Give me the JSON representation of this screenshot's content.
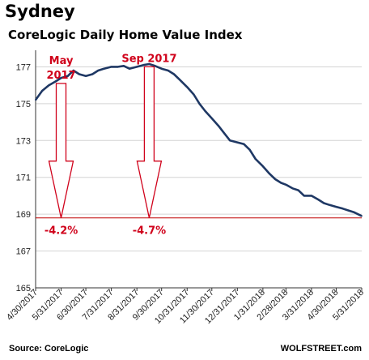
{
  "header": {
    "title": "Sydney",
    "subtitle": "CoreLogic Daily Home Value Index"
  },
  "footer": {
    "source": "Source: CoreLogic",
    "brand": "WOLFSTREET.com"
  },
  "colors": {
    "line": "#1f3864",
    "annotation": "#d0021b",
    "grid": "#d4d4d4",
    "reference_line": "#c00000"
  },
  "chart_data": {
    "type": "line",
    "title": "CoreLogic Daily Home Value Index",
    "xlabel": "",
    "ylabel": "",
    "ylim": [
      165,
      177.9
    ],
    "yticks": [
      165,
      167,
      169,
      171,
      173,
      175,
      177
    ],
    "grid": true,
    "xticks": [
      "4/30/2017",
      "5/31/2017",
      "6/30/2017",
      "7/31/2017",
      "8/31/2017",
      "9/30/2017",
      "10/31/2017",
      "11/30/2017",
      "12/31/2017",
      "1/31/2018",
      "2/28/2018",
      "3/31/2018",
      "4/30/2018",
      "5/31/2018"
    ],
    "series": [
      {
        "name": "",
        "points": [
          [
            "4/30/2017",
            175.2
          ],
          [
            "5/8/2017",
            175.7
          ],
          [
            "5/16/2017",
            176.0
          ],
          [
            "5/24/2017",
            176.2
          ],
          [
            "5/31/2017",
            176.4
          ],
          [
            "6/8/2017",
            176.5
          ],
          [
            "6/15/2017",
            176.8
          ],
          [
            "6/22/2017",
            176.6
          ],
          [
            "6/30/2017",
            176.5
          ],
          [
            "7/8/2017",
            176.6
          ],
          [
            "7/15/2017",
            176.8
          ],
          [
            "7/22/2017",
            176.9
          ],
          [
            "7/31/2017",
            177.0
          ],
          [
            "8/8/2017",
            177.0
          ],
          [
            "8/15/2017",
            177.05
          ],
          [
            "8/22/2017",
            176.9
          ],
          [
            "8/31/2017",
            177.0
          ],
          [
            "9/8/2017",
            177.1
          ],
          [
            "9/15/2017",
            177.15
          ],
          [
            "9/22/2017",
            177.05
          ],
          [
            "9/30/2017",
            176.9
          ],
          [
            "10/8/2017",
            176.8
          ],
          [
            "10/15/2017",
            176.6
          ],
          [
            "10/22/2017",
            176.3
          ],
          [
            "10/31/2017",
            175.9
          ],
          [
            "11/8/2017",
            175.5
          ],
          [
            "11/15/2017",
            175.0
          ],
          [
            "11/22/2017",
            174.6
          ],
          [
            "11/30/2017",
            174.2
          ],
          [
            "12/8/2017",
            173.8
          ],
          [
            "12/15/2017",
            173.4
          ],
          [
            "12/22/2017",
            173.0
          ],
          [
            "12/31/2017",
            172.9
          ],
          [
            "1/8/2018",
            172.8
          ],
          [
            "1/15/2018",
            172.5
          ],
          [
            "1/22/2018",
            172.0
          ],
          [
            "1/31/2018",
            171.6
          ],
          [
            "2/8/2018",
            171.2
          ],
          [
            "2/15/2018",
            170.9
          ],
          [
            "2/22/2018",
            170.7
          ],
          [
            "2/28/2018",
            170.6
          ],
          [
            "3/8/2018",
            170.4
          ],
          [
            "3/15/2018",
            170.3
          ],
          [
            "3/22/2018",
            170.0
          ],
          [
            "3/31/2018",
            170.0
          ],
          [
            "4/8/2018",
            169.8
          ],
          [
            "4/15/2018",
            169.6
          ],
          [
            "4/22/2018",
            169.5
          ],
          [
            "4/30/2018",
            169.4
          ],
          [
            "5/8/2018",
            169.3
          ],
          [
            "5/15/2018",
            169.2
          ],
          [
            "5/22/2018",
            169.1
          ],
          [
            "5/31/2018",
            168.9
          ]
        ]
      }
    ],
    "reference_line": {
      "y": 168.8
    },
    "annotations": [
      {
        "label_lines": [
          "May",
          "2017"
        ],
        "at": "5/31/2017",
        "from_y": 176.1,
        "drop_label": "-4.2%"
      },
      {
        "label_lines": [
          "Sep 2017"
        ],
        "at": "9/15/2017",
        "from_y": 177.0,
        "drop_label": "-4.7%"
      }
    ]
  }
}
